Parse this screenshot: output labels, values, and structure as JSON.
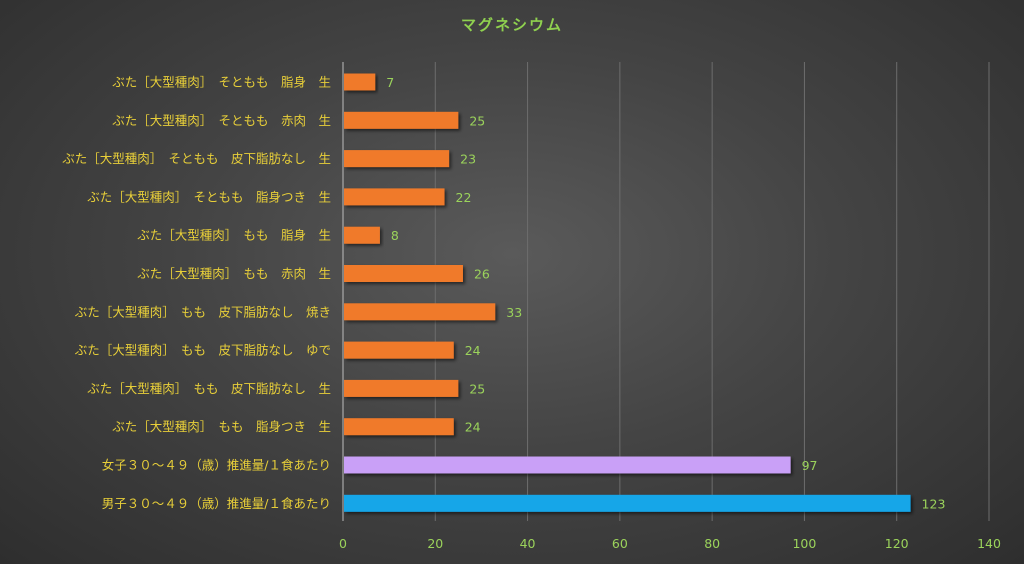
{
  "chart_data": {
    "type": "bar",
    "orientation": "horizontal",
    "title": "マグネシウム",
    "xlabel": "",
    "ylabel": "",
    "xlim": [
      0,
      140
    ],
    "xticks": [
      "0",
      "20",
      "40",
      "60",
      "80",
      "100",
      "120",
      "140"
    ],
    "grid": true,
    "legend": "none",
    "categories": [
      "ぶた［大型種肉］　そともも　脂身　生",
      "ぶた［大型種肉］　そともも　赤肉　生",
      "ぶた［大型種肉］　そともも　皮下脂肪なし　生",
      "ぶた［大型種肉］　そともも　脂身つき　生",
      "ぶた［大型種肉］　もも　脂身　生",
      "ぶた［大型種肉］　もも　赤肉　生",
      "ぶた［大型種肉］　もも　皮下脂肪なし　焼き",
      "ぶた［大型種肉］　もも　皮下脂肪なし　ゆで",
      "ぶた［大型種肉］　もも　皮下脂肪なし　生",
      "ぶた［大型種肉］　もも　脂身つき　生",
      "女子３０～４９（歳）推進量/１食あたり",
      "男子３０～４９（歳）推進量/１食あたり"
    ],
    "values": [
      7,
      25,
      23,
      22,
      8,
      26,
      33,
      24,
      25,
      24,
      97,
      123
    ],
    "bar_colors": [
      "#f07a2a",
      "#f07a2a",
      "#f07a2a",
      "#f07a2a",
      "#f07a2a",
      "#f07a2a",
      "#f07a2a",
      "#f07a2a",
      "#f07a2a",
      "#f07a2a",
      "#c9a0f7",
      "#17a6e8"
    ],
    "colors": {
      "title": "#8fd14f",
      "category_labels": "#e8cf39",
      "value_labels": "#9bd35b",
      "tick_labels": "#9bd35b"
    }
  }
}
